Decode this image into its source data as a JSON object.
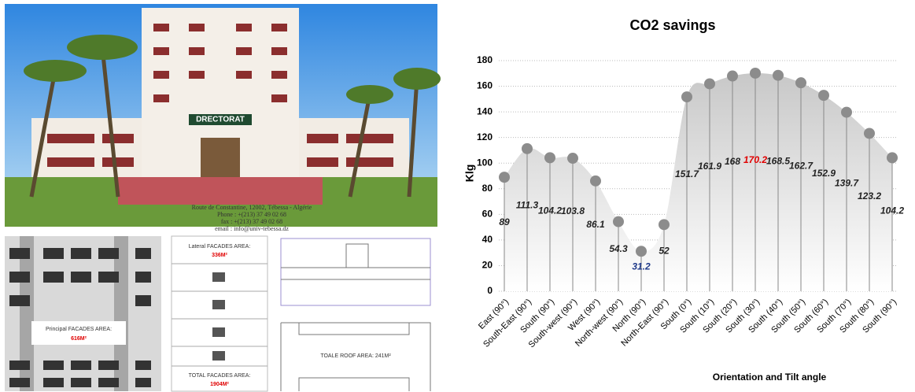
{
  "figure_texts": {
    "sign": "DRECTORAT",
    "address": "Route de Constantine, 12002, Tébessa - Algérie",
    "phone": "Phone : +(213) 37 49 02 68",
    "fax": "fax : +(213) 37 49 02 68",
    "email": "email : info@univ-tebessa.dz",
    "principal_label": "Principal FACADES AREA:",
    "principal_value": "616M²",
    "lateral_label": "Lateral FACADES AREA:",
    "lateral_value": "336M²",
    "total_label": "TOTAL FACADES AREA:",
    "total_value": "1904M²",
    "roof_label": "TOALE ROOF AREA: 241M²"
  },
  "chart_data": {
    "type": "lollipop_area",
    "title": "CO2 savings",
    "x_label": "Orientation and Tilt angle",
    "y_label": "Klg",
    "categories": [
      "East (90°)",
      "South-East (90°)",
      "South (90°)",
      "South-west (90°)",
      "West (90°)",
      "North-west (90°)",
      "North (90°)",
      "North-East (90°)",
      "South (0°)",
      "South (10°)",
      "South (20°)",
      "South (30°)",
      "South (40°)",
      "South (50°)",
      "South (60°)",
      "South (70°)",
      "South (80°)",
      "South (90°)"
    ],
    "values": [
      89,
      111.3,
      104.2,
      103.8,
      86.1,
      54.3,
      31.2,
      52,
      151.7,
      161.9,
      168,
      170.2,
      168.5,
      162.7,
      152.9,
      139.7,
      123.2,
      104.2
    ],
    "label_colors": [
      "#222",
      "#222",
      "#222",
      "#222",
      "#222",
      "#222",
      "#1f3a8a",
      "#222",
      "#222",
      "#222",
      "#222",
      "#e00000",
      "#222",
      "#222",
      "#222",
      "#222",
      "#222",
      "#222"
    ],
    "marker_color": "#8c8c8c",
    "ylim": [
      0,
      180
    ],
    "yticks": [
      0,
      20,
      40,
      60,
      80,
      100,
      120,
      140,
      160,
      180
    ],
    "grid": true
  }
}
